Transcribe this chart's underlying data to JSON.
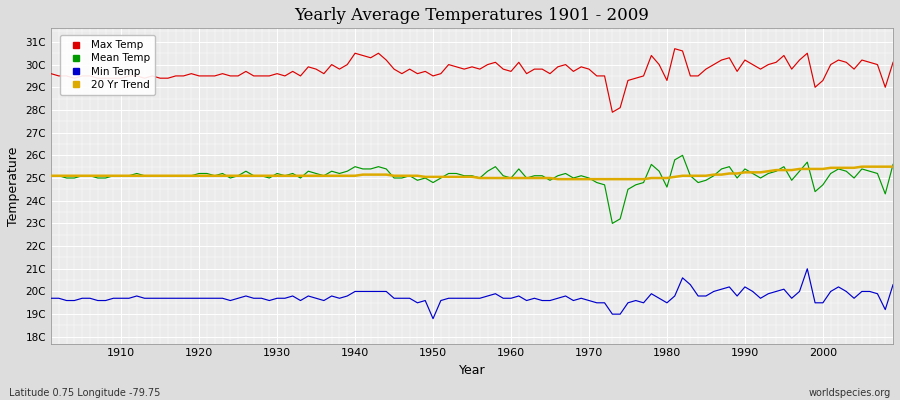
{
  "title": "Yearly Average Temperatures 1901 - 2009",
  "xlabel": "Year",
  "ylabel": "Temperature",
  "subtitle_left": "Latitude 0.75 Longitude -79.75",
  "subtitle_right": "worldspecies.org",
  "legend_labels": [
    "Max Temp",
    "Mean Temp",
    "Min Temp",
    "20 Yr Trend"
  ],
  "legend_colors": [
    "#dd0000",
    "#009900",
    "#0000cc",
    "#ddaa00"
  ],
  "ytick_vals": [
    18,
    19,
    20,
    21,
    22,
    23,
    24,
    25,
    26,
    27,
    28,
    29,
    30,
    31
  ],
  "xtick_vals": [
    1910,
    1920,
    1930,
    1940,
    1950,
    1960,
    1970,
    1980,
    1990,
    2000
  ],
  "ymin": 17.7,
  "ymax": 31.6,
  "xmin": 1901,
  "xmax": 2009,
  "background_color": "#dddddd",
  "plot_bg_color": "#ebebeb",
  "grid_color": "#ffffff",
  "years": [
    1901,
    1902,
    1903,
    1904,
    1905,
    1906,
    1907,
    1908,
    1909,
    1910,
    1911,
    1912,
    1913,
    1914,
    1915,
    1916,
    1917,
    1918,
    1919,
    1920,
    1921,
    1922,
    1923,
    1924,
    1925,
    1926,
    1927,
    1928,
    1929,
    1930,
    1931,
    1932,
    1933,
    1934,
    1935,
    1936,
    1937,
    1938,
    1939,
    1940,
    1941,
    1942,
    1943,
    1944,
    1945,
    1946,
    1947,
    1948,
    1949,
    1950,
    1951,
    1952,
    1953,
    1954,
    1955,
    1956,
    1957,
    1958,
    1959,
    1960,
    1961,
    1962,
    1963,
    1964,
    1965,
    1966,
    1967,
    1968,
    1969,
    1970,
    1971,
    1972,
    1973,
    1974,
    1975,
    1976,
    1977,
    1978,
    1979,
    1980,
    1981,
    1982,
    1983,
    1984,
    1985,
    1986,
    1987,
    1988,
    1989,
    1990,
    1991,
    1992,
    1993,
    1994,
    1995,
    1996,
    1997,
    1998,
    1999,
    2000,
    2001,
    2002,
    2003,
    2004,
    2005,
    2006,
    2007,
    2008,
    2009
  ],
  "max_temp": [
    29.6,
    29.5,
    29.5,
    29.4,
    29.5,
    29.5,
    29.4,
    29.4,
    29.4,
    29.4,
    29.5,
    29.5,
    29.4,
    29.5,
    29.4,
    29.4,
    29.5,
    29.5,
    29.6,
    29.5,
    29.5,
    29.5,
    29.6,
    29.5,
    29.5,
    29.7,
    29.5,
    29.5,
    29.5,
    29.6,
    29.5,
    29.7,
    29.5,
    29.9,
    29.8,
    29.6,
    30.0,
    29.8,
    30.0,
    30.5,
    30.4,
    30.3,
    30.5,
    30.2,
    29.8,
    29.6,
    29.8,
    29.6,
    29.7,
    29.5,
    29.6,
    30.0,
    29.9,
    29.8,
    29.9,
    29.8,
    30.0,
    30.1,
    29.8,
    29.7,
    30.1,
    29.6,
    29.8,
    29.8,
    29.6,
    29.9,
    30.0,
    29.7,
    29.9,
    29.8,
    29.5,
    29.5,
    27.9,
    28.1,
    29.3,
    29.4,
    29.5,
    30.4,
    30.0,
    29.3,
    30.7,
    30.6,
    29.5,
    29.5,
    29.8,
    30.0,
    30.2,
    30.3,
    29.7,
    30.2,
    30.0,
    29.8,
    30.0,
    30.1,
    30.4,
    29.8,
    30.2,
    30.5,
    29.0,
    29.3,
    30.0,
    30.2,
    30.1,
    29.8,
    30.2,
    30.1,
    30.0,
    29.0,
    30.1
  ],
  "mean_temp": [
    25.1,
    25.1,
    25.0,
    25.0,
    25.1,
    25.1,
    25.0,
    25.0,
    25.1,
    25.1,
    25.1,
    25.2,
    25.1,
    25.1,
    25.1,
    25.1,
    25.1,
    25.1,
    25.1,
    25.2,
    25.2,
    25.1,
    25.2,
    25.0,
    25.1,
    25.3,
    25.1,
    25.1,
    25.0,
    25.2,
    25.1,
    25.2,
    25.0,
    25.3,
    25.2,
    25.1,
    25.3,
    25.2,
    25.3,
    25.5,
    25.4,
    25.4,
    25.5,
    25.4,
    25.0,
    25.0,
    25.1,
    24.9,
    25.0,
    24.8,
    25.0,
    25.2,
    25.2,
    25.1,
    25.1,
    25.0,
    25.3,
    25.5,
    25.1,
    25.0,
    25.4,
    25.0,
    25.1,
    25.1,
    24.9,
    25.1,
    25.2,
    25.0,
    25.1,
    25.0,
    24.8,
    24.7,
    23.0,
    23.2,
    24.5,
    24.7,
    24.8,
    25.6,
    25.3,
    24.6,
    25.8,
    26.0,
    25.1,
    24.8,
    24.9,
    25.1,
    25.4,
    25.5,
    25.0,
    25.4,
    25.2,
    25.0,
    25.2,
    25.3,
    25.5,
    24.9,
    25.3,
    25.7,
    24.4,
    24.7,
    25.2,
    25.4,
    25.3,
    25.0,
    25.4,
    25.3,
    25.2,
    24.3,
    25.6
  ],
  "min_temp": [
    19.7,
    19.7,
    19.6,
    19.6,
    19.7,
    19.7,
    19.6,
    19.6,
    19.7,
    19.7,
    19.7,
    19.8,
    19.7,
    19.7,
    19.7,
    19.7,
    19.7,
    19.7,
    19.7,
    19.7,
    19.7,
    19.7,
    19.7,
    19.6,
    19.7,
    19.8,
    19.7,
    19.7,
    19.6,
    19.7,
    19.7,
    19.8,
    19.6,
    19.8,
    19.7,
    19.6,
    19.8,
    19.7,
    19.8,
    20.0,
    20.0,
    20.0,
    20.0,
    20.0,
    19.7,
    19.7,
    19.7,
    19.5,
    19.6,
    18.8,
    19.6,
    19.7,
    19.7,
    19.7,
    19.7,
    19.7,
    19.8,
    19.9,
    19.7,
    19.7,
    19.8,
    19.6,
    19.7,
    19.6,
    19.6,
    19.7,
    19.8,
    19.6,
    19.7,
    19.6,
    19.5,
    19.5,
    19.0,
    19.0,
    19.5,
    19.6,
    19.5,
    19.9,
    19.7,
    19.5,
    19.8,
    20.6,
    20.3,
    19.8,
    19.8,
    20.0,
    20.1,
    20.2,
    19.8,
    20.2,
    20.0,
    19.7,
    19.9,
    20.0,
    20.1,
    19.7,
    20.0,
    21.0,
    19.5,
    19.5,
    20.0,
    20.2,
    20.0,
    19.7,
    20.0,
    20.0,
    19.9,
    19.2,
    20.3
  ],
  "trend_temp": [
    25.1,
    25.1,
    25.1,
    25.1,
    25.1,
    25.1,
    25.1,
    25.1,
    25.1,
    25.1,
    25.1,
    25.1,
    25.1,
    25.1,
    25.1,
    25.1,
    25.1,
    25.1,
    25.1,
    25.1,
    25.1,
    25.1,
    25.1,
    25.1,
    25.1,
    25.1,
    25.1,
    25.1,
    25.1,
    25.1,
    25.1,
    25.1,
    25.1,
    25.1,
    25.1,
    25.1,
    25.1,
    25.1,
    25.1,
    25.1,
    25.15,
    25.15,
    25.15,
    25.15,
    25.1,
    25.1,
    25.1,
    25.1,
    25.05,
    25.05,
    25.05,
    25.05,
    25.05,
    25.05,
    25.05,
    25.0,
    25.0,
    25.0,
    25.0,
    25.0,
    25.0,
    25.0,
    25.0,
    25.0,
    25.0,
    24.95,
    24.95,
    24.95,
    24.95,
    24.95,
    24.95,
    24.95,
    24.95,
    24.95,
    24.95,
    24.95,
    24.95,
    25.0,
    25.0,
    25.0,
    25.05,
    25.1,
    25.1,
    25.1,
    25.1,
    25.15,
    25.15,
    25.2,
    25.2,
    25.25,
    25.25,
    25.25,
    25.3,
    25.35,
    25.35,
    25.35,
    25.4,
    25.4,
    25.4,
    25.4,
    25.45,
    25.45,
    25.45,
    25.45,
    25.5,
    25.5,
    25.5,
    25.5,
    25.5
  ]
}
